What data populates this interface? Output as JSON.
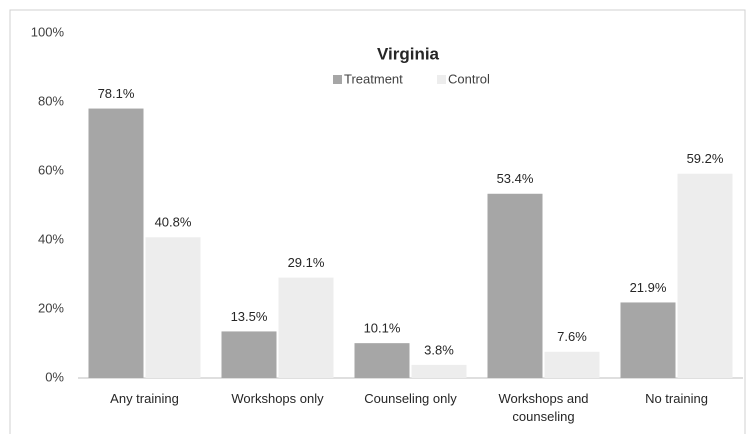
{
  "chart_data": {
    "type": "bar",
    "title": "Virginia",
    "categories": [
      "Any training",
      "Workshops only",
      "Counseling only",
      "Workshops and counseling",
      "No training"
    ],
    "series": [
      {
        "name": "Treatment",
        "color": "#a6a6a6",
        "values": [
          78.1,
          13.5,
          10.1,
          53.4,
          21.9
        ],
        "value_labels": [
          "78.1%",
          "13.5%",
          "10.1%",
          "53.4%",
          "21.9%"
        ]
      },
      {
        "name": "Control",
        "color": "#ededed",
        "values": [
          40.8,
          29.1,
          3.8,
          7.6,
          59.2
        ],
        "value_labels": [
          "40.8%",
          "29.1%",
          "3.8%",
          "7.6%",
          "59.2%"
        ]
      }
    ],
    "ylim": [
      0,
      100
    ],
    "yticks": [
      {
        "value": 0,
        "label": "0%"
      },
      {
        "value": 20,
        "label": "20%"
      },
      {
        "value": 40,
        "label": "40%"
      },
      {
        "value": 60,
        "label": "60%"
      },
      {
        "value": 80,
        "label": "80%"
      },
      {
        "value": 100,
        "label": "100%"
      }
    ],
    "grid": false
  }
}
